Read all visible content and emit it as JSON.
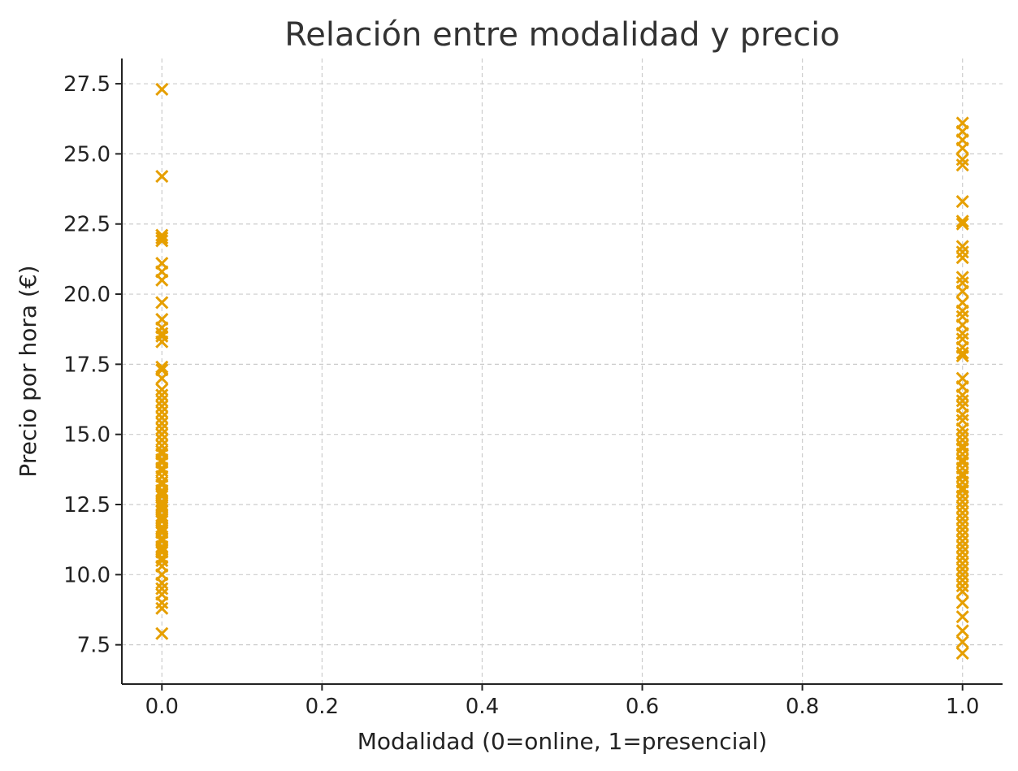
{
  "chart_data": {
    "type": "scatter",
    "title": "Relación entre modalidad y precio",
    "xlabel": "Modalidad (0=online, 1=presencial)",
    "ylabel": "Precio por hora (€)",
    "xlim": [
      -0.05,
      1.05
    ],
    "ylim": [
      6.1,
      28.4
    ],
    "xticks": [
      0.0,
      0.2,
      0.4,
      0.6,
      0.8,
      1.0
    ],
    "xtick_labels": [
      "0.0",
      "0.2",
      "0.4",
      "0.6",
      "0.8",
      "1.0"
    ],
    "yticks": [
      7.5,
      10.0,
      12.5,
      15.0,
      17.5,
      20.0,
      22.5,
      25.0,
      27.5
    ],
    "ytick_labels": [
      "7.5",
      "10.0",
      "12.5",
      "15.0",
      "17.5",
      "20.0",
      "22.5",
      "25.0",
      "27.5"
    ],
    "grid": true,
    "marker": "x",
    "color": "#E69F00",
    "series": [
      {
        "x": 0,
        "values": [
          27.3,
          24.2,
          22.1,
          22.0,
          21.9,
          21.1,
          20.8,
          20.5,
          19.7,
          19.1,
          18.8,
          18.6,
          18.5,
          18.3,
          17.4,
          17.3,
          17.0,
          16.6,
          16.4,
          16.2,
          16.0,
          15.8,
          15.6,
          15.4,
          15.2,
          15.0,
          14.8,
          14.6,
          14.4,
          14.3,
          14.1,
          14.0,
          13.8,
          13.7,
          13.5,
          13.3,
          13.2,
          13.0,
          12.9,
          12.8,
          12.6,
          12.5,
          12.4,
          12.3,
          12.1,
          12.0,
          11.9,
          11.7,
          11.6,
          11.5,
          11.3,
          11.2,
          11.0,
          10.9,
          10.8,
          10.6,
          10.5,
          10.3,
          10.0,
          9.7,
          9.5,
          9.3,
          9.0,
          8.8,
          7.9
        ]
      },
      {
        "x": 1,
        "values": [
          26.1,
          25.8,
          25.5,
          25.2,
          24.8,
          24.6,
          23.3,
          22.6,
          22.5,
          21.7,
          21.5,
          21.3,
          20.6,
          20.4,
          20.1,
          19.7,
          19.4,
          19.2,
          18.9,
          18.6,
          18.4,
          18.1,
          17.9,
          17.8,
          17.0,
          16.7,
          16.4,
          16.2,
          16.0,
          15.7,
          15.5,
          15.2,
          15.0,
          14.8,
          14.6,
          14.5,
          14.3,
          14.1,
          14.0,
          13.8,
          13.6,
          13.5,
          13.3,
          13.1,
          13.0,
          12.8,
          12.6,
          12.4,
          12.2,
          12.0,
          11.8,
          11.6,
          11.4,
          11.2,
          11.0,
          10.8,
          10.6,
          10.4,
          10.2,
          10.0,
          9.8,
          9.6,
          9.4,
          9.0,
          8.5,
          8.0,
          7.6,
          7.2
        ]
      }
    ]
  }
}
